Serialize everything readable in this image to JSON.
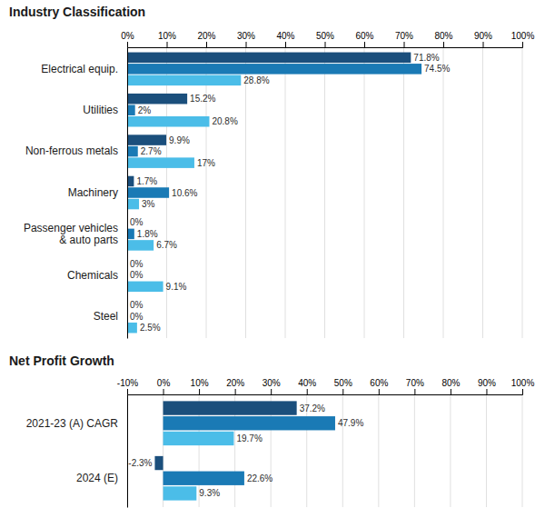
{
  "chart_data": [
    {
      "type": "bar",
      "title": "Industry Classification",
      "orientation": "horizontal",
      "data_labels": true,
      "grid": true,
      "categories": [
        "Electrical equip.",
        "Utilities",
        "Non-ferrous metals",
        "Machinery",
        "Passenger vehicles\n& auto parts",
        "Chemicals",
        "Steel"
      ],
      "series": [
        {
          "color": "#1b4f7c",
          "values": [
            71.8,
            15.2,
            9.9,
            1.7,
            0.0,
            0.0,
            0.0
          ],
          "value_labels": [
            "71.8%",
            "15.2%",
            "9.9%",
            "1.7%",
            "0%",
            "0%",
            "0%"
          ]
        },
        {
          "color": "#1a7ab5",
          "values": [
            74.5,
            2.0,
            2.7,
            10.6,
            1.8,
            0.0,
            0.0
          ],
          "value_labels": [
            "74.5%",
            "2%",
            "2.7%",
            "10.6%",
            "1.8%",
            "0%",
            "0%"
          ]
        },
        {
          "color": "#4bbde8",
          "values": [
            28.8,
            20.8,
            17.0,
            3.0,
            6.7,
            9.1,
            2.5
          ],
          "value_labels": [
            "28.8%",
            "20.8%",
            "17%",
            "3%",
            "6.7%",
            "9.1%",
            "2.5%"
          ]
        }
      ],
      "xlim": [
        0,
        100
      ],
      "xticks": [
        {
          "value": 0,
          "label": "0%"
        },
        {
          "value": 10,
          "label": "10%"
        },
        {
          "value": 20,
          "label": "20%"
        },
        {
          "value": 30,
          "label": "30%"
        },
        {
          "value": 40,
          "label": "40%"
        },
        {
          "value": 50,
          "label": "50%"
        },
        {
          "value": 60,
          "label": "60%"
        },
        {
          "value": 70,
          "label": "70%"
        },
        {
          "value": 80,
          "label": "80%"
        },
        {
          "value": 90,
          "label": "90%"
        },
        {
          "value": 100,
          "label": "100%"
        }
      ]
    },
    {
      "type": "bar",
      "title": "Net Profit Growth",
      "orientation": "horizontal",
      "data_labels": true,
      "grid": true,
      "categories": [
        "2021-23 (A) CAGR",
        "2024 (E)"
      ],
      "series": [
        {
          "color": "#1b4f7c",
          "values": [
            37.2,
            -2.3
          ],
          "value_labels": [
            "37.2%",
            "-2.3%"
          ]
        },
        {
          "color": "#1a7ab5",
          "values": [
            47.9,
            22.6
          ],
          "value_labels": [
            "47.9%",
            "22.6%"
          ]
        },
        {
          "color": "#4bbde8",
          "values": [
            19.7,
            9.3
          ],
          "value_labels": [
            "19.7%",
            "9.3%"
          ]
        }
      ],
      "xlim": [
        -10,
        100
      ],
      "xticks": [
        {
          "value": -10,
          "label": "-10%"
        },
        {
          "value": 0,
          "label": "0%"
        },
        {
          "value": 10,
          "label": "10%"
        },
        {
          "value": 20,
          "label": "20%"
        },
        {
          "value": 30,
          "label": "30%"
        },
        {
          "value": 40,
          "label": "40%"
        },
        {
          "value": 50,
          "label": "50%"
        },
        {
          "value": 60,
          "label": "60%"
        },
        {
          "value": 70,
          "label": "70%"
        },
        {
          "value": 80,
          "label": "80%"
        },
        {
          "value": 90,
          "label": "90%"
        },
        {
          "value": 100,
          "label": "100%"
        }
      ]
    }
  ]
}
